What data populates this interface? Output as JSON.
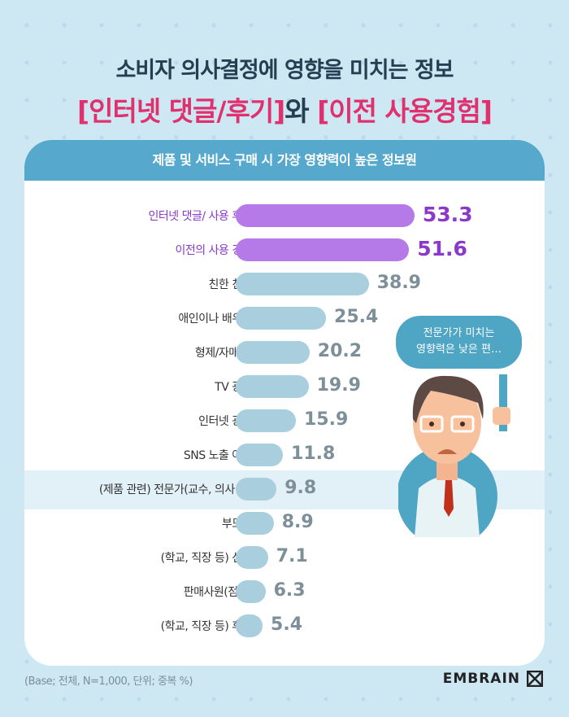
{
  "title": {
    "line1": "소비자 의사결정에 영향을 미치는 정보",
    "part1": "[인터넷 댓글/후기]",
    "joiner": "와 ",
    "part2": "[이전 사용경험]"
  },
  "card_title": "제품 및 서비스 구매 시 가장 영향력이 높은 정보원",
  "chart_data": {
    "type": "bar",
    "orientation": "horizontal",
    "categories": [
      "인터넷 댓글/ 사용 후기",
      "이전의 사용 경험",
      "친한 친구",
      "애인이나 배우자",
      "형제/자매 등",
      "TV 광고",
      "인터넷 광고",
      "SNS 노출 여부",
      "(제품 관련) 전문가(교수, 의사 등)",
      "부모님",
      "(학교, 직장 등) 선배",
      "판매사원(점원)",
      "(학교, 직장 등) 후배"
    ],
    "values": [
      53.3,
      51.6,
      38.9,
      25.4,
      20.2,
      19.9,
      15.9,
      11.8,
      9.8,
      8.9,
      7.1,
      6.3,
      5.4
    ],
    "highlighted": [
      0,
      1
    ],
    "highlight_band": 8,
    "colors": {
      "highlight": "#b57ae8",
      "default": "#a9cfdf"
    }
  },
  "bubble": {
    "line1": "전문가가 미치는",
    "line2": "영향력은 낮은 편…"
  },
  "footnote": "(Base; 전체, N=1,000, 단위; 중복 %)",
  "logo": "EMBRAIN"
}
